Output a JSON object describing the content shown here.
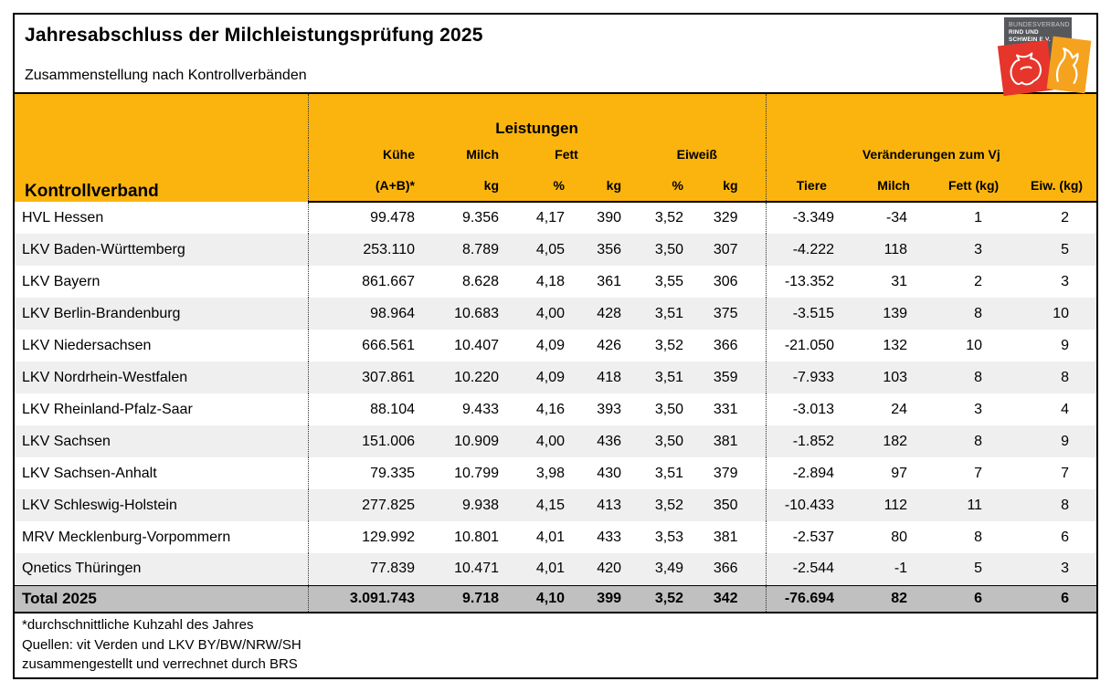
{
  "page": {
    "title": "Jahresabschluss der Milchleistungsprüfung 2025",
    "subtitle": "Zusammenstellung nach Kontrollverbänden"
  },
  "logo": {
    "org_line1": "BUNDESVERBAND",
    "org_line2": "RIND UND SCHWEIN E.V."
  },
  "colors": {
    "header_orange": "#FBB40D",
    "row_alt": "#EFEFEF",
    "total_gray": "#C0C0C0",
    "logo_red": "#E6352B",
    "logo_orange": "#F5A21F",
    "logo_gray": "#57585C"
  },
  "table": {
    "col1_header": "Kontrollverband",
    "group_leistungen": "Leistungen",
    "group_veraenderungen": "Veränderungen zum Vj",
    "sub": {
      "kuehe": "Kühe",
      "milch": "Milch",
      "fett": "Fett",
      "eiweiss": "Eiweiß"
    },
    "units": [
      "(A+B)*",
      "kg",
      "%",
      "kg",
      "%",
      "kg",
      "Tiere",
      "Milch",
      "Fett (kg)",
      "Eiw. (kg)"
    ],
    "rows": [
      {
        "name": "HVL Hessen",
        "values": [
          "99.478",
          "9.356",
          "4,17",
          "390",
          "3,52",
          "329",
          "-3.349",
          "-34",
          "1",
          "2"
        ]
      },
      {
        "name": "LKV Baden-Württemberg",
        "values": [
          "253.110",
          "8.789",
          "4,05",
          "356",
          "3,50",
          "307",
          "-4.222",
          "118",
          "3",
          "5"
        ]
      },
      {
        "name": "LKV Bayern",
        "values": [
          "861.667",
          "8.628",
          "4,18",
          "361",
          "3,55",
          "306",
          "-13.352",
          "31",
          "2",
          "3"
        ]
      },
      {
        "name": "LKV Berlin-Brandenburg",
        "values": [
          "98.964",
          "10.683",
          "4,00",
          "428",
          "3,51",
          "375",
          "-3.515",
          "139",
          "8",
          "10"
        ]
      },
      {
        "name": "LKV Niedersachsen",
        "values": [
          "666.561",
          "10.407",
          "4,09",
          "426",
          "3,52",
          "366",
          "-21.050",
          "132",
          "10",
          "9"
        ]
      },
      {
        "name": "LKV Nordrhein-Westfalen",
        "values": [
          "307.861",
          "10.220",
          "4,09",
          "418",
          "3,51",
          "359",
          "-7.933",
          "103",
          "8",
          "8"
        ]
      },
      {
        "name": "LKV Rheinland-Pfalz-Saar",
        "values": [
          "88.104",
          "9.433",
          "4,16",
          "393",
          "3,50",
          "331",
          "-3.013",
          "24",
          "3",
          "4"
        ]
      },
      {
        "name": "LKV Sachsen",
        "values": [
          "151.006",
          "10.909",
          "4,00",
          "436",
          "3,50",
          "381",
          "-1.852",
          "182",
          "8",
          "9"
        ]
      },
      {
        "name": "LKV Sachsen-Anhalt",
        "values": [
          "79.335",
          "10.799",
          "3,98",
          "430",
          "3,51",
          "379",
          "-2.894",
          "97",
          "7",
          "7"
        ]
      },
      {
        "name": "LKV Schleswig-Holstein",
        "values": [
          "277.825",
          "9.938",
          "4,15",
          "413",
          "3,52",
          "350",
          "-10.433",
          "112",
          "11",
          "8"
        ]
      },
      {
        "name": "MRV Mecklenburg-Vorpommern",
        "values": [
          "129.992",
          "10.801",
          "4,01",
          "433",
          "3,53",
          "381",
          "-2.537",
          "80",
          "8",
          "6"
        ]
      },
      {
        "name": "Qnetics Thüringen",
        "values": [
          "77.839",
          "10.471",
          "4,01",
          "420",
          "3,49",
          "366",
          "-2.544",
          "-1",
          "5",
          "3"
        ]
      }
    ],
    "total": {
      "label": "Total 2025",
      "values": [
        "3.091.743",
        "9.718",
        "4,10",
        "399",
        "3,52",
        "342",
        "-76.694",
        "82",
        "6",
        "6"
      ]
    }
  },
  "footnotes": [
    "*durchschnittliche Kuhzahl des Jahres",
    "Quellen: vit Verden und LKV BY/BW/NRW/SH",
    "zusammengestellt und verrechnet durch BRS"
  ]
}
